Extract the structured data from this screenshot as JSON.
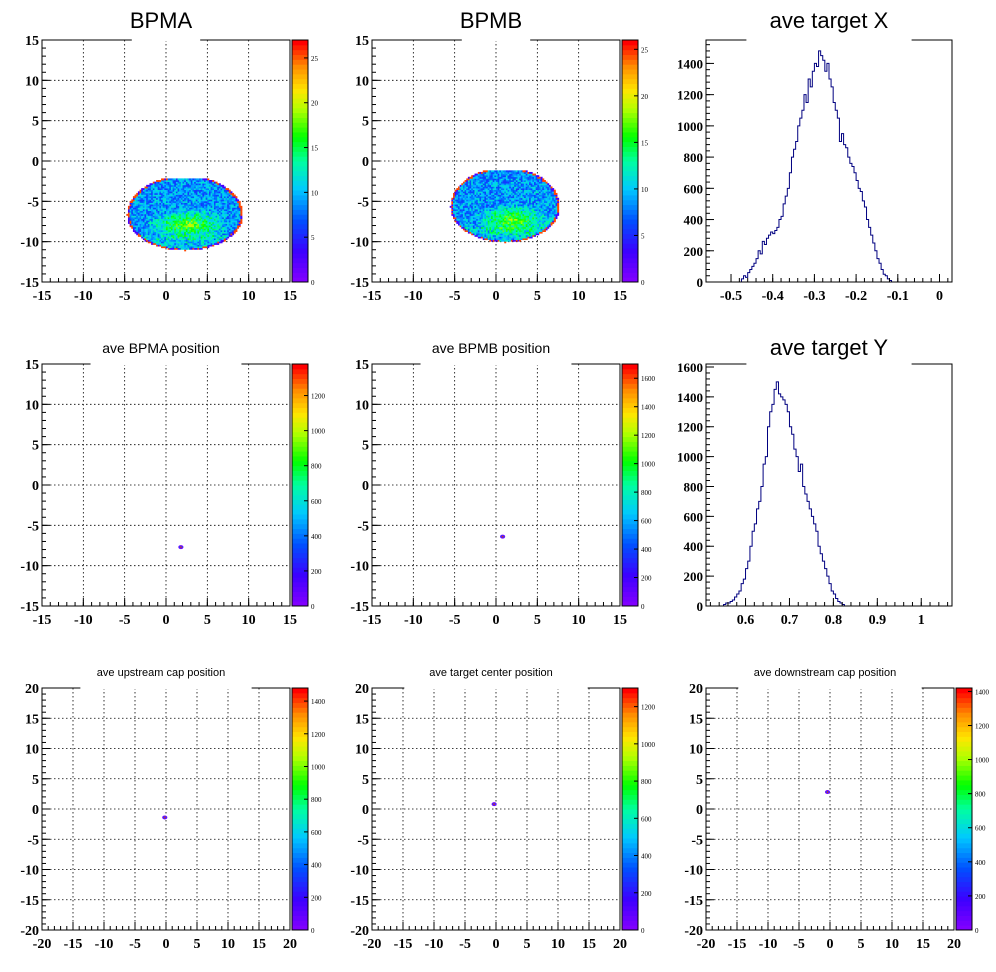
{
  "chart_data": [
    {
      "id": "p1",
      "type": "heatmap",
      "title": "BPMA",
      "xlim": [
        -15,
        15
      ],
      "ylim": [
        -15,
        15
      ],
      "xticks": [
        "-15",
        "-10",
        "-5",
        "0",
        "5",
        "10",
        "15"
      ],
      "yticks": [
        "-15",
        "-10",
        "-5",
        "0",
        "5",
        "10",
        "15"
      ],
      "grid": true,
      "zlim": [
        0,
        27
      ],
      "zticks": [
        "0",
        "5",
        "10",
        "15",
        "20",
        "25"
      ],
      "blob": {
        "center": [
          2.2,
          -6.8
        ],
        "rx": 7.0,
        "ry": 4.4,
        "hot_center": [
          2.5,
          -8.0
        ]
      }
    },
    {
      "id": "p2",
      "type": "heatmap",
      "title": "BPMB",
      "xlim": [
        -15,
        15
      ],
      "ylim": [
        -15,
        15
      ],
      "xticks": [
        "-15",
        "-10",
        "-5",
        "0",
        "5",
        "10",
        "15"
      ],
      "yticks": [
        "-15",
        "-10",
        "-5",
        "0",
        "5",
        "10",
        "15"
      ],
      "grid": true,
      "zlim": [
        0,
        26
      ],
      "zticks": [
        "0",
        "5",
        "10",
        "15",
        "20",
        "25"
      ],
      "blob": {
        "center": [
          1.0,
          -5.8
        ],
        "rx": 6.6,
        "ry": 4.4,
        "hot_center": [
          2.0,
          -7.5
        ]
      }
    },
    {
      "id": "p3",
      "type": "histogram",
      "title": "ave target X",
      "xlim": [
        -0.56,
        0.03
      ],
      "ylim": [
        0,
        1550
      ],
      "xticks": [
        "-0.5",
        "-0.4",
        "-0.3",
        "-0.2",
        "-0.1",
        "0"
      ],
      "yticks": [
        "0",
        "200",
        "400",
        "600",
        "800",
        "1000",
        "1200",
        "1400"
      ],
      "grid": false,
      "bins": {
        "x0": -0.48,
        "width": 0.005,
        "counts": [
          0,
          20,
          40,
          30,
          60,
          80,
          100,
          120,
          150,
          200,
          180,
          260,
          240,
          280,
          300,
          320,
          310,
          330,
          350,
          400,
          420,
          500,
          550,
          600,
          700,
          800,
          850,
          900,
          1000,
          1050,
          1100,
          1200,
          1150,
          1300,
          1250,
          1350,
          1400,
          1380,
          1480,
          1450,
          1420,
          1350,
          1400,
          1300,
          1250,
          1150,
          1100,
          1050,
          900,
          950,
          880,
          860,
          800,
          760,
          740,
          700,
          650,
          600,
          580,
          520,
          480,
          400,
          350,
          300,
          250,
          200,
          150,
          120,
          80,
          50,
          40,
          20,
          10,
          0
        ]
      }
    },
    {
      "id": "p4",
      "type": "heatmap",
      "title": "ave BPMA position",
      "xlim": [
        -15,
        15
      ],
      "ylim": [
        -15,
        15
      ],
      "xticks": [
        "-15",
        "-10",
        "-5",
        "0",
        "5",
        "10",
        "15"
      ],
      "yticks": [
        "-15",
        "-10",
        "-5",
        "0",
        "5",
        "10",
        "15"
      ],
      "grid": true,
      "zlim": [
        0,
        1380
      ],
      "zticks": [
        "0",
        "200",
        "400",
        "600",
        "800",
        "1000",
        "1200"
      ],
      "blob": {
        "center": [
          1.8,
          -7.7
        ],
        "rx": 0.4,
        "ry": 0.25,
        "hot_center": [
          1.8,
          -7.7
        ]
      }
    },
    {
      "id": "p5",
      "type": "heatmap",
      "title": "ave BPMB position",
      "xlim": [
        -15,
        15
      ],
      "ylim": [
        -15,
        15
      ],
      "xticks": [
        "-15",
        "-10",
        "-5",
        "0",
        "5",
        "10",
        "15"
      ],
      "yticks": [
        "-15",
        "-10",
        "-5",
        "0",
        "5",
        "10",
        "15"
      ],
      "grid": true,
      "zlim": [
        0,
        1700
      ],
      "zticks": [
        "0",
        "200",
        "400",
        "600",
        "800",
        "1000",
        "1200",
        "1400",
        "1600"
      ],
      "blob": {
        "center": [
          0.8,
          -6.4
        ],
        "rx": 0.4,
        "ry": 0.25,
        "hot_center": [
          0.8,
          -6.4
        ]
      }
    },
    {
      "id": "p6",
      "type": "histogram",
      "title": "ave target Y",
      "xlim": [
        0.51,
        1.07
      ],
      "ylim": [
        0,
        1620
      ],
      "xticks": [
        "0.5",
        "0.6",
        "0.7",
        "0.8",
        "0.9",
        "1"
      ],
      "yticks": [
        "0",
        "200",
        "400",
        "600",
        "800",
        "1000",
        "1200",
        "1400",
        "1600"
      ],
      "grid": false,
      "bins": {
        "x0": 0.55,
        "width": 0.005,
        "counts": [
          10,
          20,
          20,
          30,
          40,
          60,
          80,
          100,
          150,
          180,
          250,
          300,
          400,
          500,
          550,
          650,
          700,
          800,
          950,
          1000,
          1200,
          1300,
          1350,
          1450,
          1500,
          1420,
          1400,
          1380,
          1350,
          1300,
          1200,
          1150,
          1050,
          1000,
          900,
          950,
          800,
          750,
          700,
          650,
          600,
          550,
          500,
          400,
          350,
          300,
          250,
          200,
          150,
          100,
          80,
          50,
          30,
          20,
          10,
          0
        ]
      }
    },
    {
      "id": "p7",
      "type": "heatmap",
      "title": "ave upstream cap position",
      "xlim": [
        -20,
        20
      ],
      "ylim": [
        -20,
        20
      ],
      "xticks": [
        "-20",
        "-15",
        "-10",
        "-5",
        "0",
        "5",
        "10",
        "15",
        "20"
      ],
      "yticks": [
        "-20",
        "-15",
        "-10",
        "-5",
        "0",
        "5",
        "10",
        "15",
        "20"
      ],
      "grid": true,
      "zlim": [
        0,
        1480
      ],
      "zticks": [
        "0",
        "200",
        "400",
        "600",
        "800",
        "1000",
        "1200",
        "1400"
      ],
      "blob": {
        "center": [
          -0.2,
          -1.4
        ],
        "rx": 0.45,
        "ry": 0.3,
        "hot_center": [
          -0.2,
          -1.4
        ]
      }
    },
    {
      "id": "p8",
      "type": "heatmap",
      "title": "ave target center  position",
      "xlim": [
        -20,
        20
      ],
      "ylim": [
        -20,
        20
      ],
      "xticks": [
        "-20",
        "-15",
        "-10",
        "-5",
        "0",
        "5",
        "10",
        "15",
        "20"
      ],
      "yticks": [
        "-20",
        "-15",
        "-10",
        "-5",
        "0",
        "5",
        "10",
        "15",
        "20"
      ],
      "grid": true,
      "zlim": [
        0,
        1300
      ],
      "zticks": [
        "0",
        "200",
        "400",
        "600",
        "800",
        "1000",
        "1200"
      ],
      "blob": {
        "center": [
          -0.3,
          0.8
        ],
        "rx": 0.45,
        "ry": 0.3,
        "hot_center": [
          -0.3,
          0.8
        ]
      }
    },
    {
      "id": "p9",
      "type": "heatmap",
      "title": "ave downstream cap position",
      "xlim": [
        -20,
        20
      ],
      "ylim": [
        -20,
        20
      ],
      "xticks": [
        "-20",
        "-15",
        "-10",
        "-5",
        "0",
        "5",
        "10",
        "15",
        "20"
      ],
      "yticks": [
        "-20",
        "-15",
        "-10",
        "-5",
        "0",
        "5",
        "10",
        "15",
        "20"
      ],
      "grid": true,
      "zlim": [
        0,
        1420
      ],
      "zticks": [
        "0",
        "200",
        "400",
        "600",
        "800",
        "1000",
        "1200",
        "1400"
      ],
      "blob": {
        "center": [
          -0.4,
          2.8
        ],
        "rx": 0.45,
        "ry": 0.3,
        "hot_center": [
          -0.4,
          2.8
        ]
      }
    }
  ]
}
